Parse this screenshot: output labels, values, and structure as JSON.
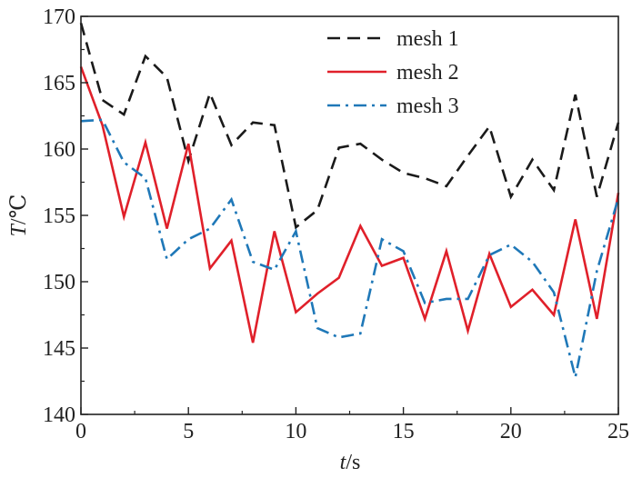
{
  "chart_data": {
    "type": "line",
    "title": "",
    "xlabel_italic": "t",
    "xlabel_unit": "/s",
    "ylabel_italic": "T",
    "ylabel_unit": "/℃",
    "xlim": [
      0,
      25
    ],
    "ylim": [
      140,
      170
    ],
    "xticks": [
      0,
      5,
      10,
      15,
      20,
      25
    ],
    "yticks": [
      140,
      145,
      150,
      155,
      160,
      165,
      170
    ],
    "grid": false,
    "legend_position": "top-right",
    "x": [
      0,
      1,
      2,
      3,
      4,
      5,
      6,
      7,
      8,
      9,
      10,
      11,
      12,
      13,
      14,
      15,
      16,
      17,
      18,
      19,
      20,
      21,
      22,
      23,
      24,
      25
    ],
    "series": [
      {
        "name": "mesh 1",
        "color": "#1a1a1a",
        "dash": "dashed",
        "values": [
          169.5,
          163.7,
          162.6,
          167.0,
          165.4,
          159.1,
          164.2,
          160.3,
          162.0,
          161.8,
          154.1,
          155.4,
          160.1,
          160.4,
          159.2,
          158.2,
          157.8,
          157.2,
          159.5,
          161.7,
          156.4,
          159.2,
          156.9,
          164.1,
          156.4,
          162.0
        ]
      },
      {
        "name": "mesh 2",
        "color": "#e0202a",
        "dash": "solid",
        "values": [
          166.2,
          161.8,
          154.9,
          160.5,
          154.0,
          160.4,
          151.0,
          153.1,
          145.4,
          153.8,
          147.7,
          149.1,
          150.3,
          154.2,
          151.2,
          151.8,
          147.2,
          152.3,
          146.3,
          152.1,
          148.1,
          149.4,
          147.5,
          154.7,
          147.2,
          156.7
        ]
      },
      {
        "name": "mesh 3",
        "color": "#1f78b8",
        "dash": "dashdot",
        "values": [
          162.1,
          162.2,
          159.0,
          157.8,
          151.7,
          153.2,
          154.0,
          156.2,
          151.5,
          150.9,
          153.8,
          146.5,
          145.8,
          146.1,
          153.2,
          152.3,
          148.4,
          148.7,
          148.7,
          152.0,
          152.8,
          151.5,
          149.2,
          142.8,
          150.8,
          156.3
        ]
      }
    ]
  }
}
